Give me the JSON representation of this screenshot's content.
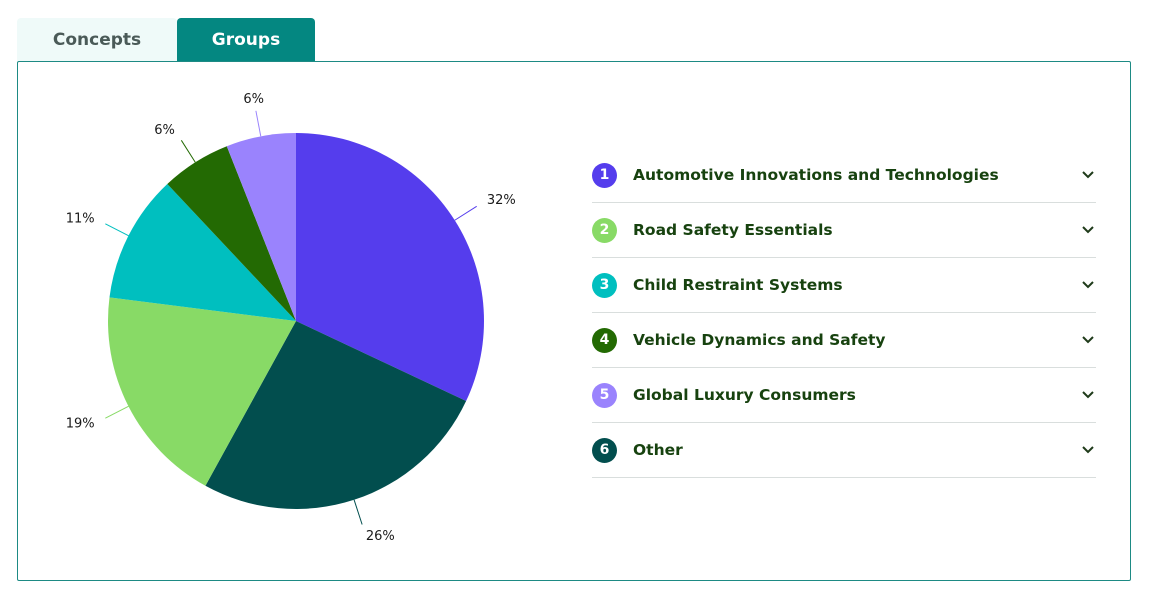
{
  "tabs": [
    {
      "label": "Concepts",
      "active": false
    },
    {
      "label": "Groups",
      "active": true
    }
  ],
  "chart_data": {
    "type": "pie",
    "slices": [
      {
        "label": "Automotive Innovations and Technologies",
        "value": 32,
        "display": "32%",
        "color": "#553ded"
      },
      {
        "label": "Other",
        "value": 26,
        "display": "26%",
        "color": "#024e4e"
      },
      {
        "label": "Road Safety Essentials",
        "value": 19,
        "display": "19%",
        "color": "#88da66"
      },
      {
        "label": "Child Restraint Systems",
        "value": 11,
        "display": "11%",
        "color": "#00bfbf"
      },
      {
        "label": "Vehicle Dynamics and Safety",
        "value": 6,
        "display": "6%",
        "color": "#236a03"
      },
      {
        "label": "Global Luxury Consumers",
        "value": 6,
        "display": "6%",
        "color": "#9a83fd"
      }
    ]
  },
  "legend": [
    {
      "num": "1",
      "label": "Automotive Innovations and Technologies",
      "color": "#553ded"
    },
    {
      "num": "2",
      "label": "Road Safety Essentials",
      "color": "#88da66"
    },
    {
      "num": "3",
      "label": "Child Restraint Systems",
      "color": "#00bfbf"
    },
    {
      "num": "4",
      "label": "Vehicle Dynamics and Safety",
      "color": "#236a03"
    },
    {
      "num": "5",
      "label": "Global Luxury Consumers",
      "color": "#9a83fd"
    },
    {
      "num": "6",
      "label": "Other",
      "color": "#024e4e"
    }
  ]
}
